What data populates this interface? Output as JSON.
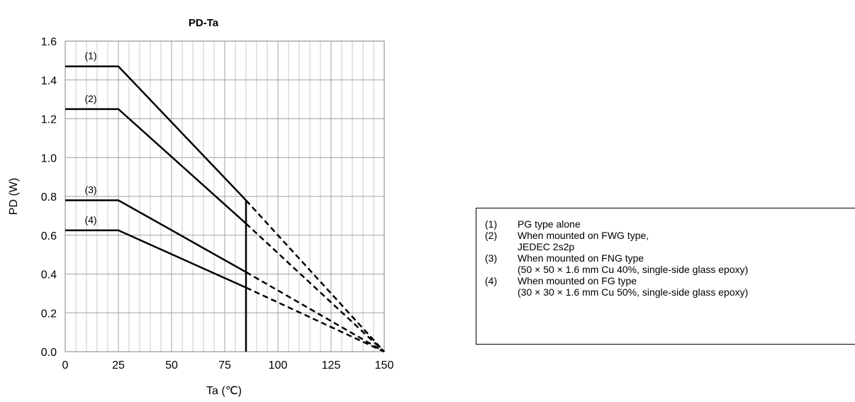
{
  "chart_data": {
    "type": "line",
    "title": "PD-Ta",
    "xlabel": "Ta (℃)",
    "ylabel": "PD (W)",
    "xlim": [
      0,
      150
    ],
    "ylim": [
      0,
      1.6
    ],
    "x_ticks": [
      "0",
      "25",
      "50",
      "75",
      "100",
      "125",
      "150"
    ],
    "y_ticks": [
      "0.0",
      "0.2",
      "0.4",
      "0.6",
      "0.8",
      "1.0",
      "1.2",
      "1.4",
      "1.6"
    ],
    "grid": true,
    "series": [
      {
        "name": "(1)",
        "x": [
          0,
          25,
          85,
          150
        ],
        "y": [
          1.47,
          1.47,
          0.78,
          0.0
        ],
        "dashed_from_x": 85
      },
      {
        "name": "(2)",
        "x": [
          0,
          25,
          85,
          150
        ],
        "y": [
          1.25,
          1.25,
          0.66,
          0.0
        ],
        "dashed_from_x": 85
      },
      {
        "name": "(3)",
        "x": [
          0,
          25,
          85,
          150
        ],
        "y": [
          0.78,
          0.78,
          0.41,
          0.0
        ],
        "dashed_from_x": 85
      },
      {
        "name": "(4)",
        "x": [
          0,
          25,
          85,
          150
        ],
        "y": [
          0.625,
          0.625,
          0.33,
          0.0
        ],
        "dashed_from_x": 85
      }
    ],
    "vertical_line_x": 85
  },
  "legend": {
    "entries": [
      {
        "num": "(1)",
        "lines": [
          "PG type alone"
        ]
      },
      {
        "num": "(2)",
        "lines": [
          "When mounted on FWG type,",
          "JEDEC 2s2p"
        ]
      },
      {
        "num": "(3)",
        "lines": [
          "When mounted on FNG type",
          "(50 × 50 × 1.6 mm Cu 40%, single-side glass epoxy)"
        ]
      },
      {
        "num": "(4)",
        "lines": [
          "When mounted on FG type",
          "(30 × 30 × 1.6 mm Cu 50%, single-side glass epoxy)"
        ]
      }
    ]
  }
}
